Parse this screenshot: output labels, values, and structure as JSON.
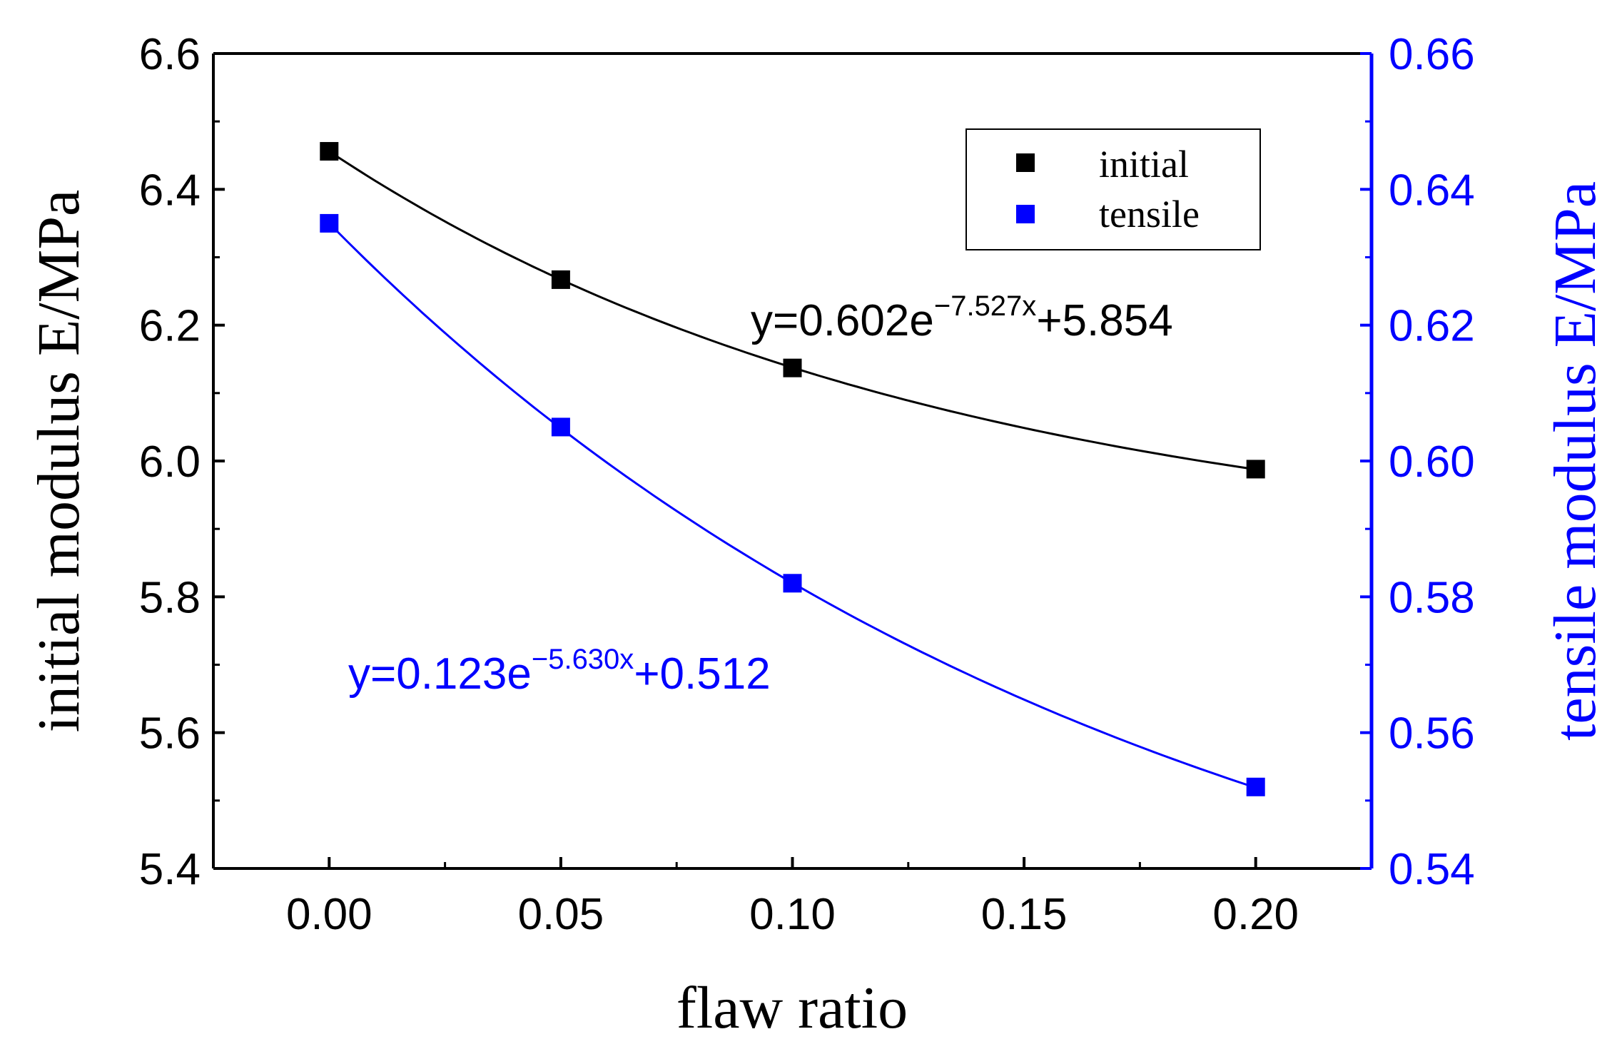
{
  "chart_data": {
    "type": "scatter",
    "xlabel": "flaw ratio",
    "ylabel_left": "initial modulus E/MPa",
    "ylabel_right": "tensile modulus E/MPa",
    "xlim": [
      -0.025,
      0.225
    ],
    "ylim_left": [
      5.4,
      6.6
    ],
    "ylim_right": [
      0.54,
      0.66
    ],
    "x_ticks": [
      "0.00",
      "0.05",
      "0.10",
      "0.15",
      "0.20"
    ],
    "y_left_ticks": [
      "5.4",
      "5.6",
      "5.8",
      "6.0",
      "6.2",
      "6.4",
      "6.6"
    ],
    "y_right_ticks": [
      "0.54",
      "0.56",
      "0.58",
      "0.60",
      "0.62",
      "0.64",
      "0.66"
    ],
    "grid": false,
    "legend_position": "top-right",
    "series": [
      {
        "name": "initial",
        "axis": "left",
        "color": "#000000",
        "x": [
          0,
          0.05,
          0.1,
          0.2
        ],
        "y": [
          6.456,
          6.267,
          6.137,
          5.988
        ],
        "fit": {
          "a": 0.602,
          "b": -7.527,
          "c": 5.854
        },
        "equation": {
          "base": "y=0.602e",
          "exp": "−7.527x",
          "tail": "+5.854"
        }
      },
      {
        "name": "tensile",
        "axis": "right",
        "color": "#0000ff",
        "x": [
          0,
          0.05,
          0.1,
          0.2
        ],
        "y": [
          0.635,
          0.605,
          0.582,
          0.552
        ],
        "fit": {
          "a": 0.123,
          "b": -5.63,
          "c": 0.512
        },
        "equation": {
          "base": "y=0.123e",
          "exp": "−5.630x",
          "tail": "+0.512"
        }
      }
    ]
  }
}
